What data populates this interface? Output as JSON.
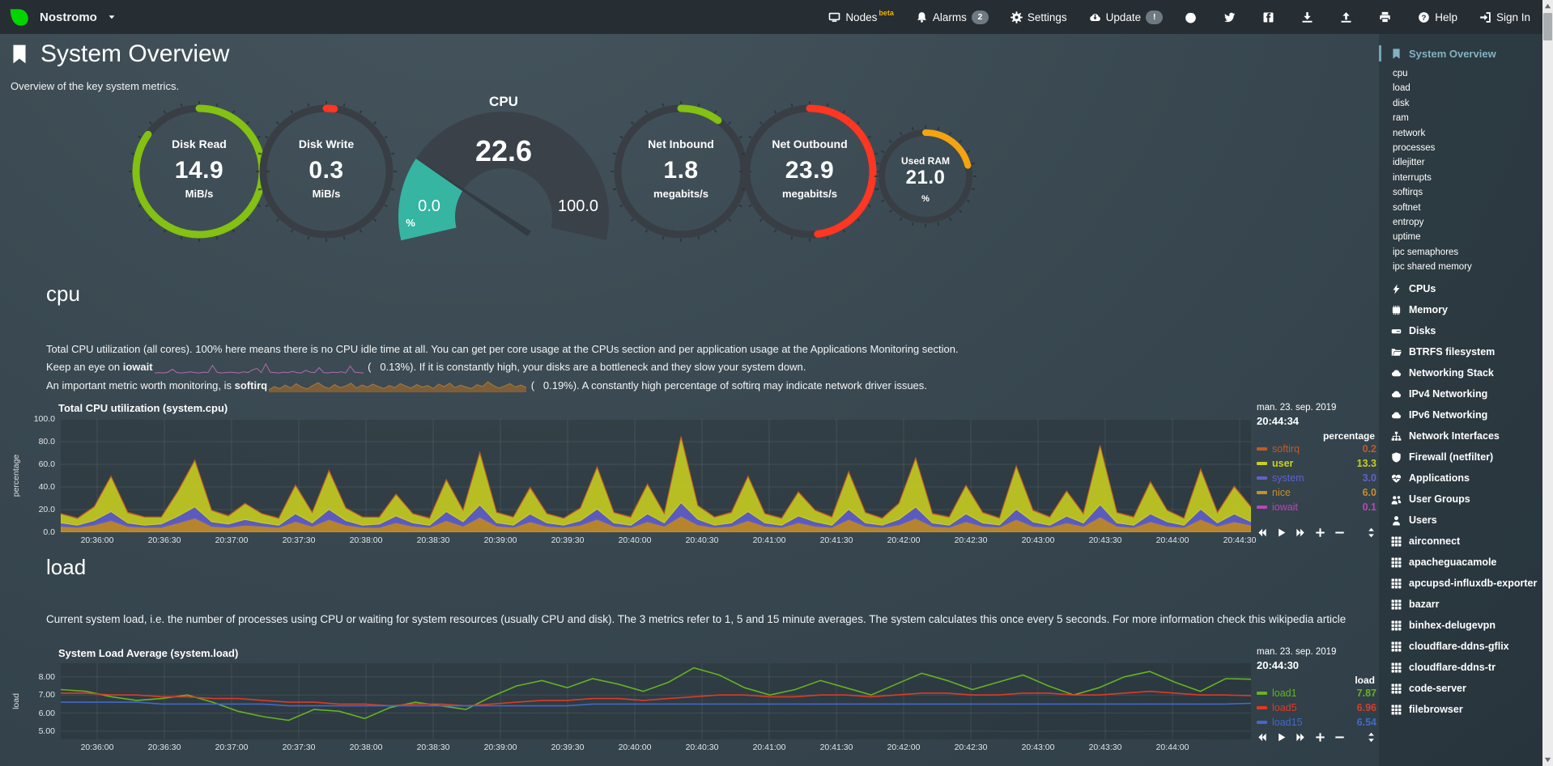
{
  "navbar": {
    "hostname": "Nostromo",
    "items": [
      {
        "label": "Nodes",
        "icon": "nodes-icon",
        "badge": "beta",
        "badge_style": "beta"
      },
      {
        "label": "Alarms",
        "icon": "bell-icon",
        "badge": "2",
        "badge_style": "pill"
      },
      {
        "label": "Settings",
        "icon": "gear-icon"
      },
      {
        "label": "Update",
        "icon": "cloud-download-icon",
        "badge": "!",
        "badge_style": "pill"
      },
      {
        "label": "",
        "icon": "github-icon"
      },
      {
        "label": "",
        "icon": "twitter-icon"
      },
      {
        "label": "",
        "icon": "facebook-icon"
      },
      {
        "label": "",
        "icon": "download-icon"
      },
      {
        "label": "",
        "icon": "upload-icon"
      },
      {
        "label": "",
        "icon": "print-icon"
      },
      {
        "label": "Help",
        "icon": "question-icon"
      },
      {
        "label": "Sign In",
        "icon": "signin-icon"
      }
    ]
  },
  "header": {
    "title": "System Overview",
    "subtitle": "Overview of the key system metrics."
  },
  "gauges": [
    {
      "name": "disk-read",
      "label": "Disk Read",
      "value": "14.9",
      "unit": "MiB/s",
      "color": "#83C112",
      "arc_percent": 85,
      "type": "ring"
    },
    {
      "name": "disk-write",
      "label": "Disk Write",
      "value": "0.3",
      "unit": "MiB/s",
      "color": "#FF3621",
      "arc_percent": 2,
      "type": "ring"
    },
    {
      "name": "cpu",
      "title": "CPU",
      "value": "22.6",
      "min": "0.0",
      "max": "100.0",
      "unit": "%",
      "color": "#35B5A2",
      "percent": 22.6,
      "type": "gauge"
    },
    {
      "name": "net-inbound",
      "label": "Net Inbound",
      "value": "1.8",
      "unit": "megabits/s",
      "color": "#83C112",
      "arc_percent": 10,
      "type": "ring"
    },
    {
      "name": "net-outbound",
      "label": "Net Outbound",
      "value": "23.9",
      "unit": "megabits/s",
      "color": "#FF3621",
      "arc_percent": 48,
      "type": "ring"
    },
    {
      "name": "used-ram",
      "label": "Used RAM",
      "value": "21.0",
      "unit": "%",
      "color": "#F3A410",
      "arc_percent": 21,
      "type": "ring",
      "small": true
    }
  ],
  "cpu_section": {
    "heading": "cpu",
    "line1": "Total CPU utilization (all cores). 100% here means there is no CPU idle time at all. You can get per core usage at the CPUs section and per application usage at the Applications Monitoring section.",
    "line2_pre": "Keep an eye on ",
    "line2_bold": "iowait",
    "line2_post": " (   0.13%). If it is constantly high, your disks are a bottleneck and they slow your system down.",
    "line3_pre": "An important metric worth monitoring, is ",
    "line3_bold": "softirq",
    "line3_post": " (   0.19%). A constantly high percentage of softirq may indicate network driver issues.",
    "iowait_spark": {
      "color": "#B06BB0",
      "values": [
        0.2,
        0.3,
        0.2,
        0.4,
        1.2,
        0.3,
        0.2,
        0.3,
        0.5,
        0.3,
        0.2,
        0.4,
        0.3,
        2.2,
        0.4,
        0.2,
        0.3,
        0.4,
        0.3,
        0.2,
        0.5,
        0.3,
        1.0,
        1.4,
        0.3,
        2.6,
        0.4,
        0.3,
        0.2,
        0.4,
        0.3,
        0.6,
        0.3,
        0.2,
        0.9,
        0.4,
        0.3,
        1.6,
        0.3,
        0.2,
        0.4,
        0.3,
        0.5,
        0.2,
        2.0,
        0.4,
        0.3,
        0.2
      ]
    },
    "softirq_spark": {
      "color": "#8A6134",
      "values": [
        0.5,
        1.2,
        0.8,
        1.5,
        0.9,
        1.8,
        1.1,
        0.7,
        1.4,
        2.0,
        1.2,
        0.8,
        1.6,
        1.0,
        1.3,
        1.9,
        0.9,
        1.5,
        1.1,
        1.7,
        1.2,
        0.8,
        1.4,
        1.0,
        1.8,
        1.3,
        0.9,
        1.6,
        1.1,
        1.4,
        0.8,
        1.7,
        1.2,
        1.9,
        1.0,
        1.5,
        1.1,
        0.8,
        1.6,
        1.2,
        2.2,
        1.4,
        0.9,
        1.3,
        1.8,
        1.1,
        1.5,
        1.0
      ]
    }
  },
  "cpu_chart": {
    "title": "Total CPU utilization (system.cpu)",
    "date": "man. 23. sep. 2019",
    "time": "20:44:34",
    "units_header": "percentage",
    "legend": [
      {
        "name": "softirq",
        "value": "0.2",
        "color": "#C05A28"
      },
      {
        "name": "user",
        "value": "13.3",
        "color": "#C9D01F",
        "highlight": true
      },
      {
        "name": "system",
        "value": "3.0",
        "color": "#6260CE"
      },
      {
        "name": "nice",
        "value": "6.0",
        "color": "#C98E2B"
      },
      {
        "name": "iowait",
        "value": "0.1",
        "color": "#B847B8"
      }
    ],
    "chart_data": {
      "type": "area",
      "stacked": true,
      "title": "Total CPU utilization (system.cpu)",
      "ylabel": "percentage",
      "ylim": [
        0,
        100
      ],
      "yticks": [
        "0.0",
        "20.0",
        "40.0",
        "60.0",
        "80.0",
        "100.0"
      ],
      "x_labels": [
        "20:36:00",
        "20:36:30",
        "20:37:00",
        "20:37:30",
        "20:38:00",
        "20:38:30",
        "20:39:00",
        "20:39:30",
        "20:40:00",
        "20:40:30",
        "20:41:00",
        "20:41:30",
        "20:42:00",
        "20:42:30",
        "20:43:00",
        "20:43:30",
        "20:44:00",
        "20:44:30"
      ],
      "stack_order_note": "series listed bottom to top",
      "series": [
        {
          "name": "iowait",
          "color": "#B847B8",
          "values": [
            0.3,
            0.2,
            0.4,
            0.3,
            0.2,
            0.3,
            0.3,
            0.2,
            0.4,
            0.3,
            0.2,
            0.3,
            0.3,
            0.2,
            0.4,
            0.3,
            0.2,
            0.3,
            0.3,
            0.2,
            0.4,
            0.3,
            0.2,
            0.3,
            0.3,
            0.2,
            0.4,
            0.3,
            0.2,
            0.3,
            0.3,
            0.2,
            0.4,
            0.3,
            0.2,
            0.3,
            0.3,
            0.2,
            0.4,
            0.3,
            0.2,
            0.3,
            0.3,
            0.2,
            0.4,
            0.3,
            0.2,
            0.3,
            0.3,
            0.2,
            0.4,
            0.3,
            0.2,
            0.3,
            0.3,
            0.2,
            0.4,
            0.3,
            0.2,
            0.3,
            0.3,
            0.2,
            0.4,
            0.3,
            0.2,
            0.3,
            0.3,
            0.2,
            0.4,
            0.3,
            0.2,
            0.3
          ]
        },
        {
          "name": "nice",
          "color": "#C98E2B",
          "values": [
            5,
            4,
            6,
            10,
            5,
            4,
            4,
            8,
            12,
            5,
            4,
            6,
            5,
            4,
            9,
            5,
            11,
            6,
            4,
            4,
            8,
            5,
            4,
            10,
            5,
            13,
            5,
            4,
            9,
            5,
            4,
            6,
            11,
            5,
            4,
            9,
            5,
            14,
            6,
            4,
            5,
            10,
            5,
            4,
            8,
            5,
            4,
            11,
            5,
            4,
            6,
            12,
            5,
            4,
            9,
            5,
            4,
            11,
            5,
            4,
            8,
            5,
            13,
            5,
            4,
            9,
            5,
            4,
            11,
            5,
            9,
            6
          ]
        },
        {
          "name": "system",
          "color": "#6260CE",
          "values": [
            3,
            2,
            4,
            8,
            3,
            2,
            3,
            6,
            10,
            4,
            3,
            5,
            3,
            2,
            7,
            3,
            9,
            4,
            2,
            3,
            6,
            3,
            2,
            8,
            4,
            11,
            3,
            2,
            7,
            3,
            2,
            4,
            9,
            3,
            2,
            7,
            3,
            12,
            5,
            2,
            3,
            8,
            3,
            2,
            6,
            4,
            2,
            9,
            3,
            2,
            5,
            10,
            3,
            2,
            7,
            3,
            2,
            9,
            4,
            2,
            6,
            3,
            11,
            3,
            2,
            7,
            4,
            2,
            9,
            3,
            7,
            3
          ]
        },
        {
          "name": "user",
          "color": "#C9D01F",
          "values": [
            8,
            6,
            12,
            31,
            9,
            7,
            6,
            22,
            41,
            10,
            7,
            14,
            8,
            6,
            25,
            9,
            34,
            11,
            7,
            6,
            19,
            8,
            6,
            28,
            10,
            46,
            9,
            7,
            23,
            8,
            6,
            11,
            37,
            9,
            7,
            26,
            8,
            58,
            12,
            7,
            9,
            31,
            8,
            6,
            21,
            10,
            7,
            33,
            9,
            6,
            14,
            43,
            8,
            7,
            25,
            9,
            6,
            38,
            10,
            7,
            22,
            8,
            52,
            9,
            7,
            28,
            10,
            6,
            35,
            9,
            24,
            13
          ]
        },
        {
          "name": "softirq",
          "color": "#C05A28",
          "values": [
            0.2,
            0.4,
            0.3,
            0.2,
            0.5,
            0.3,
            0.2,
            0.4,
            0.3,
            0.2,
            0.5,
            0.3,
            0.2,
            0.4,
            0.3,
            0.2,
            0.5,
            0.3,
            0.2,
            0.4,
            0.3,
            0.2,
            0.5,
            0.3,
            0.2,
            0.4,
            0.3,
            0.2,
            0.5,
            0.3,
            0.2,
            0.4,
            0.3,
            0.2,
            0.5,
            0.3,
            0.2,
            0.4,
            0.3,
            0.2,
            0.5,
            0.3,
            0.2,
            0.4,
            0.3,
            0.2,
            0.5,
            0.3,
            0.2,
            0.4,
            0.3,
            0.2,
            0.5,
            0.3,
            0.2,
            0.4,
            0.3,
            0.2,
            0.5,
            0.3,
            0.2,
            0.4,
            0.3,
            0.2,
            0.5,
            0.3,
            0.2,
            0.4,
            0.3,
            0.2,
            0.5,
            0.3
          ]
        }
      ]
    }
  },
  "load_section": {
    "heading": "load",
    "para": "Current system load, i.e. the number of processes using CPU or waiting for system resources (usually CPU and disk). The 3 metrics refer to 1, 5 and 15 minute averages. The system calculates this once every 5 seconds. For more information check this ",
    "link": "wikipedia article"
  },
  "load_chart": {
    "title": "System Load Average (system.load)",
    "date": "man. 23. sep. 2019",
    "time": "20:44:30",
    "units_header": "load",
    "legend": [
      {
        "name": "load1",
        "value": "7.87",
        "color": "#64B322"
      },
      {
        "name": "load5",
        "value": "6.96",
        "color": "#DE3A24"
      },
      {
        "name": "load15",
        "value": "6.54",
        "color": "#4169C9"
      }
    ],
    "chart_data": {
      "type": "line",
      "title": "System Load Average (system.load)",
      "ylabel": "load",
      "ylim": [
        4.55,
        8.75
      ],
      "yticks": [
        "5.00",
        "6.00",
        "7.00",
        "8.00"
      ],
      "x_labels": [
        "20:36:00",
        "20:36:30",
        "20:37:00",
        "20:37:30",
        "20:38:00",
        "20:38:30",
        "20:39:00",
        "20:39:30",
        "20:40:00",
        "20:40:30",
        "20:41:00",
        "20:41:30",
        "20:42:00",
        "20:42:30",
        "20:43:00",
        "20:43:30",
        "20:44:00"
      ],
      "series": [
        {
          "name": "load1",
          "color": "#64B322",
          "values": [
            7.3,
            7.2,
            6.9,
            6.7,
            6.8,
            7.0,
            6.6,
            6.1,
            5.8,
            5.6,
            6.2,
            6.1,
            5.7,
            6.3,
            6.6,
            6.4,
            6.2,
            6.9,
            7.5,
            7.8,
            7.4,
            7.9,
            7.6,
            7.2,
            7.7,
            8.5,
            8.1,
            7.4,
            7.0,
            7.3,
            7.8,
            7.4,
            7.0,
            7.6,
            8.2,
            7.8,
            7.3,
            7.7,
            8.1,
            7.5,
            7.0,
            7.4,
            8.0,
            8.3,
            7.7,
            7.2,
            7.9,
            7.87
          ]
        },
        {
          "name": "load5",
          "color": "#DE3A24",
          "values": [
            7.1,
            7.1,
            7.0,
            7.0,
            6.9,
            6.9,
            6.8,
            6.8,
            6.7,
            6.6,
            6.6,
            6.5,
            6.5,
            6.4,
            6.5,
            6.5,
            6.4,
            6.5,
            6.6,
            6.7,
            6.7,
            6.8,
            6.8,
            6.7,
            6.8,
            6.9,
            7.0,
            7.0,
            6.9,
            6.9,
            7.0,
            7.0,
            6.9,
            7.0,
            7.1,
            7.1,
            7.0,
            7.0,
            7.1,
            7.1,
            7.0,
            7.0,
            7.1,
            7.2,
            7.1,
            7.0,
            7.0,
            6.96
          ]
        },
        {
          "name": "load15",
          "color": "#4169C9",
          "values": [
            6.6,
            6.6,
            6.6,
            6.6,
            6.5,
            6.5,
            6.5,
            6.5,
            6.5,
            6.4,
            6.4,
            6.4,
            6.4,
            6.4,
            6.4,
            6.4,
            6.4,
            6.4,
            6.4,
            6.4,
            6.4,
            6.5,
            6.5,
            6.5,
            6.5,
            6.5,
            6.5,
            6.5,
            6.5,
            6.5,
            6.5,
            6.5,
            6.5,
            6.5,
            6.5,
            6.5,
            6.5,
            6.5,
            6.5,
            6.5,
            6.5,
            6.5,
            6.5,
            6.5,
            6.5,
            6.5,
            6.5,
            6.54
          ]
        }
      ]
    }
  },
  "sidebar": {
    "active": {
      "label": "System Overview",
      "icon": "bookmark-icon"
    },
    "subitems": [
      "cpu",
      "load",
      "disk",
      "ram",
      "network",
      "processes",
      "idlejitter",
      "interrupts",
      "softirqs",
      "softnet",
      "entropy",
      "uptime",
      "ipc semaphores",
      "ipc shared memory"
    ],
    "items": [
      {
        "label": "CPUs",
        "icon": "bolt-icon"
      },
      {
        "label": "Memory",
        "icon": "memory-icon"
      },
      {
        "label": "Disks",
        "icon": "hdd-icon"
      },
      {
        "label": "BTRFS filesystem",
        "icon": "folder-icon"
      },
      {
        "label": "Networking Stack",
        "icon": "cloud-icon"
      },
      {
        "label": "IPv4 Networking",
        "icon": "cloud-icon"
      },
      {
        "label": "IPv6 Networking",
        "icon": "cloud-icon"
      },
      {
        "label": "Network Interfaces",
        "icon": "sitemap-icon"
      },
      {
        "label": "Firewall (netfilter)",
        "icon": "shield-icon"
      },
      {
        "label": "Applications",
        "icon": "heartbeat-icon"
      },
      {
        "label": "User Groups",
        "icon": "users-icon"
      },
      {
        "label": "Users",
        "icon": "user-icon"
      },
      {
        "label": "airconnect",
        "icon": "grid-icon",
        "gap": true
      },
      {
        "label": "apacheguacamole",
        "icon": "grid-icon",
        "gap": true
      },
      {
        "label": "apcupsd-influxdb-exporter",
        "icon": "grid-icon",
        "gap": true
      },
      {
        "label": "bazarr",
        "icon": "grid-icon",
        "gap": true
      },
      {
        "label": "binhex-delugevpn",
        "icon": "grid-icon",
        "gap": true
      },
      {
        "label": "cloudflare-ddns-gflix",
        "icon": "grid-icon",
        "gap": true
      },
      {
        "label": "cloudflare-ddns-tr",
        "icon": "grid-icon",
        "gap": true
      },
      {
        "label": "code-server",
        "icon": "grid-icon",
        "gap": true
      },
      {
        "label": "filebrowser",
        "icon": "grid-icon",
        "gap": true
      }
    ]
  },
  "toolbar_icons": [
    "skip-backward-icon",
    "play-icon",
    "skip-forward-icon",
    "zoom-in-icon",
    "zoom-out-icon",
    "resize-icon"
  ],
  "colors": {
    "navbar_bg": "#262d33",
    "accent_active": "#6FA7B8",
    "beta_badge": "#F0B400",
    "logo_green": "#00D500",
    "gauge_track": "#383E44",
    "gauge_dark": "#3A4149"
  }
}
